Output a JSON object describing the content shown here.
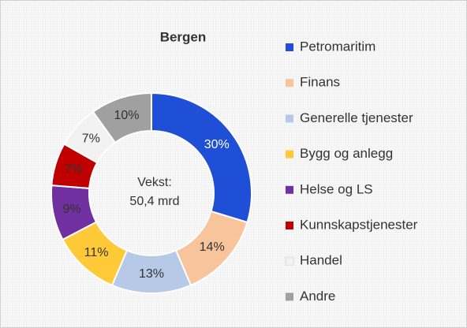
{
  "chart_data": {
    "type": "donut",
    "title": "Bergen",
    "annotations": [
      "Vekst:",
      "50,4 mrd"
    ],
    "categories": [
      "Petromaritim",
      "Finans",
      "Generelle tjenester",
      "Bygg og anlegg",
      "Helse og LS",
      "Kunnskapstjenester",
      "Handel",
      "Andre"
    ],
    "values": [
      30,
      14,
      13,
      11,
      9,
      7,
      7,
      10
    ],
    "value_labels": [
      "30%",
      "14%",
      "13%",
      "11%",
      "9%",
      "7%",
      "7%",
      "10%"
    ],
    "colors": [
      "#1f4fd6",
      "#f8c49b",
      "#b6c9e6",
      "#ffc937",
      "#7030a0",
      "#c00000",
      "#f2f2f2",
      "#a0a0a0"
    ],
    "label_colors": [
      "#ffffff",
      "#333333",
      "#333333",
      "#333333",
      "#333333",
      "#333333",
      "#333333",
      "#333333"
    ],
    "legend": "right"
  }
}
